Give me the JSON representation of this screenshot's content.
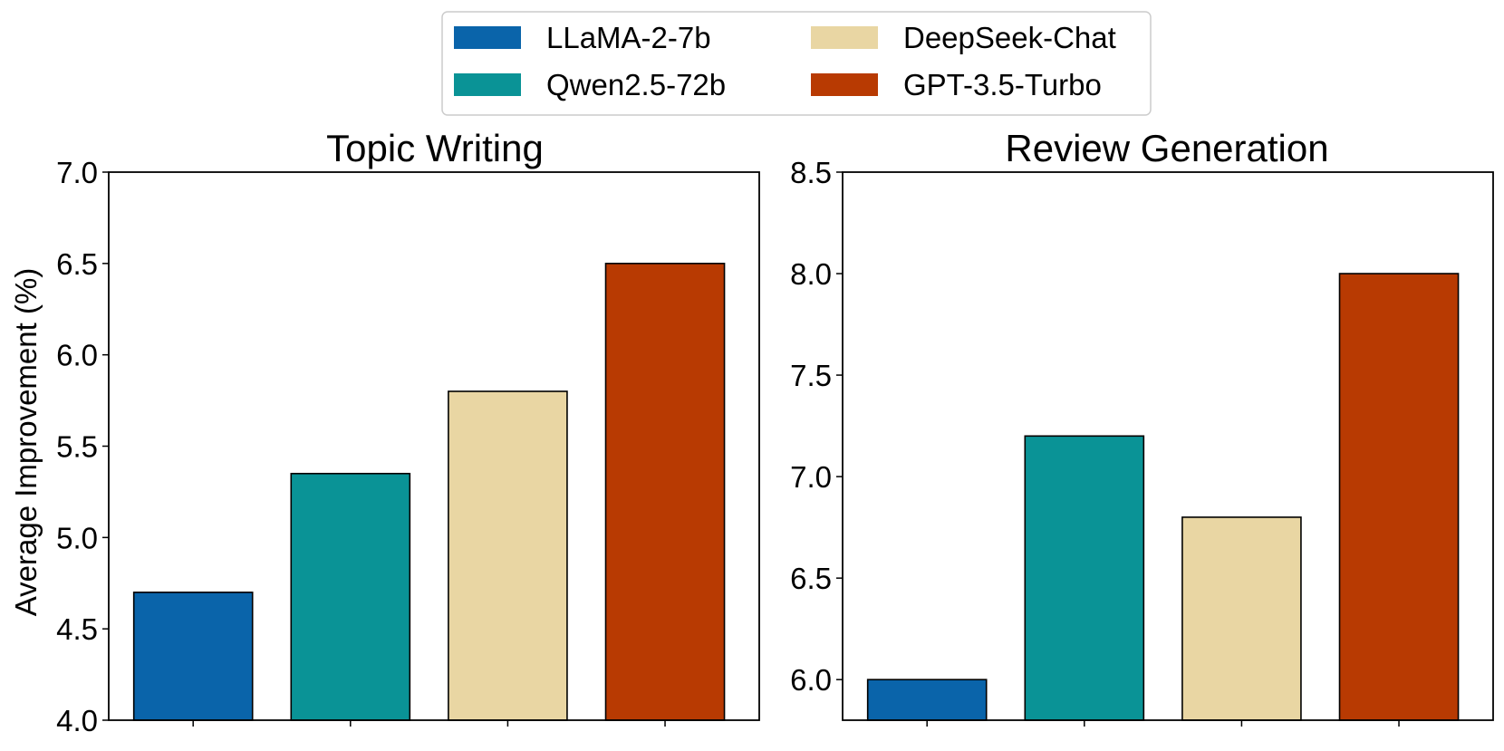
{
  "legend": {
    "items": [
      {
        "label": "LLaMA-2-7b",
        "color": "#0a64aa"
      },
      {
        "label": "DeepSeek-Chat",
        "color": "#e9d6a3"
      },
      {
        "label": "Qwen2.5-72b",
        "color": "#0a9396"
      },
      {
        "label": "GPT-3.5-Turbo",
        "color": "#b83a02"
      }
    ]
  },
  "chart_data": [
    {
      "type": "bar",
      "title": "Topic Writing",
      "xlabel": "",
      "ylabel": "Average Improvement (%)",
      "categories": [
        "LLaMA-2-7b",
        "Qwen2.5-72b",
        "DeepSeek-Chat",
        "GPT-3.5-Turbo"
      ],
      "values": [
        4.7,
        5.35,
        5.8,
        6.5
      ],
      "colors": [
        "#0a64aa",
        "#0a9396",
        "#e9d6a3",
        "#b83a02"
      ],
      "ylim": [
        4.0,
        7.0
      ],
      "yticks": [
        4.0,
        4.5,
        5.0,
        5.5,
        6.0,
        6.5,
        7.0
      ],
      "ytick_labels": [
        "4.0",
        "4.5",
        "5.0",
        "5.5",
        "6.0",
        "6.5",
        "7.0"
      ],
      "grid": false
    },
    {
      "type": "bar",
      "title": "Review Generation",
      "xlabel": "",
      "ylabel": "",
      "categories": [
        "LLaMA-2-7b",
        "Qwen2.5-72b",
        "DeepSeek-Chat",
        "GPT-3.5-Turbo"
      ],
      "values": [
        6.0,
        7.2,
        6.8,
        8.0
      ],
      "colors": [
        "#0a64aa",
        "#0a9396",
        "#e9d6a3",
        "#b83a02"
      ],
      "ylim": [
        5.8,
        8.5
      ],
      "yticks": [
        6.0,
        6.5,
        7.0,
        7.5,
        8.0,
        8.5
      ],
      "ytick_labels": [
        "6.0",
        "6.5",
        "7.0",
        "7.5",
        "8.0",
        "8.5"
      ],
      "grid": false
    }
  ]
}
